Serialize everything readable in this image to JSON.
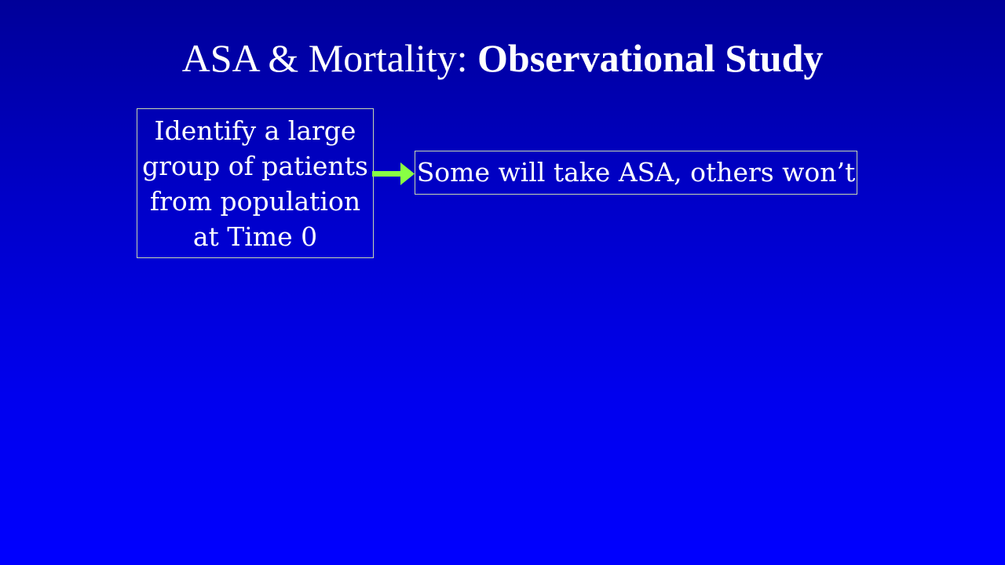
{
  "slide": {
    "title_plain": "ASA & Mortality: ",
    "title_bold": "Observational Study"
  },
  "diagram": {
    "start_box": {
      "lines": [
        "Identify a large",
        "group of patients",
        "from population",
        "at Time 0"
      ]
    },
    "arrow_color": "#88ff44",
    "result_box": {
      "text": "Some will take ASA, others won’t"
    }
  },
  "colors": {
    "background_top": "#000099",
    "background_bottom": "#0000ff",
    "box_border": "#c8d8b0",
    "text": "#ffffff"
  }
}
